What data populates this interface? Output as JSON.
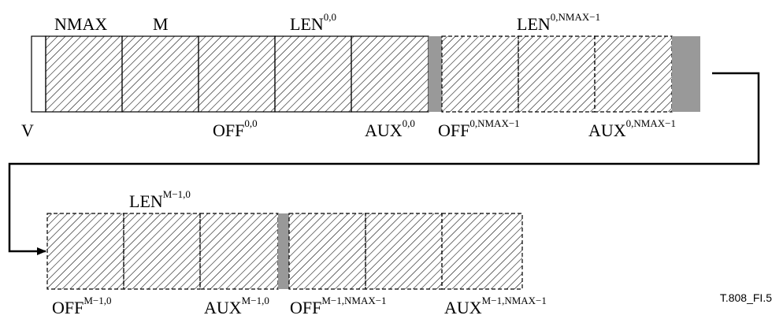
{
  "row1": {
    "top_labels": {
      "nmax": "NMAX",
      "m": "M",
      "len00": {
        "base": "LEN",
        "sup": "0,0"
      },
      "len0nmax": {
        "base": "LEN",
        "sup": "0,NMAX−1"
      }
    },
    "bottom_labels": {
      "v": "V",
      "off00": {
        "base": "OFF",
        "sup": "0,0"
      },
      "aux00": {
        "base": "AUX",
        "sup": "0,0"
      },
      "off0nmax": {
        "base": "OFF",
        "sup": "0,NMAX−1"
      },
      "aux0nmax": {
        "base": "AUX",
        "sup": "0,NMAX−1"
      }
    }
  },
  "row2": {
    "top_labels": {
      "lenm10": {
        "base": "LEN",
        "sup": "M−1,0"
      }
    },
    "bottom_labels": {
      "offm10": {
        "base": "OFF",
        "sup": "M−1,0"
      },
      "auxm10": {
        "base": "AUX",
        "sup": "M−1,0"
      },
      "offm1nmax": {
        "base": "OFF",
        "sup": "M−1,NMAX−1"
      },
      "auxm1nmax": {
        "base": "AUX",
        "sup": "M−1,NMAX−1"
      }
    }
  },
  "figure_id": "T.808_FI.5",
  "colors": {
    "separator": "#999999",
    "stroke": "#000000",
    "hatch": "#000000"
  }
}
